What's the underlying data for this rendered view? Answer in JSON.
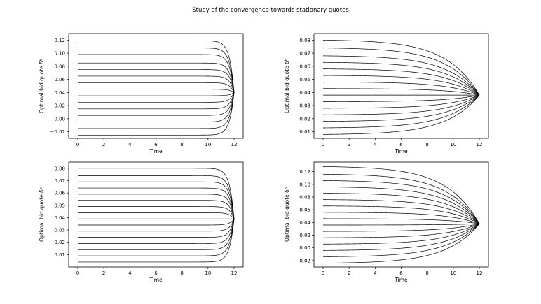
{
  "figure": {
    "title": "Study of the convergence towards stationary quotes"
  },
  "chart_data": [
    {
      "type": "line",
      "panel": "top-left",
      "xlabel": "Time",
      "ylabel": "Optimal bid quote δᵇ",
      "xlim": [
        -0.7,
        12.7
      ],
      "ylim": [
        -0.03,
        0.13
      ],
      "xticks": [
        0,
        2,
        4,
        6,
        8,
        10,
        12
      ],
      "yticks": [
        -0.02,
        0.0,
        0.02,
        0.04,
        0.06,
        0.08,
        0.1,
        0.12
      ],
      "ytick_labels": [
        "−0.02",
        "0.00",
        "0.02",
        "0.04",
        "0.06",
        "0.08",
        "0.10",
        "0.12"
      ],
      "line_color": "#000000",
      "terminal_time": 12,
      "terminal_value": 0.04,
      "convergence_rate": 3.0,
      "series_start_values": [
        -0.025,
        -0.015,
        -0.005,
        0.005,
        0.015,
        0.025,
        0.035,
        0.045,
        0.055,
        0.065,
        0.075,
        0.085,
        0.098,
        0.108,
        0.119
      ]
    },
    {
      "type": "line",
      "panel": "top-right",
      "xlabel": "Time",
      "ylabel": "Optimal bid quote δᵇ",
      "xlim": [
        -0.7,
        12.7
      ],
      "ylim": [
        0.005,
        0.085
      ],
      "xticks": [
        0,
        2,
        4,
        6,
        8,
        10,
        12
      ],
      "yticks": [
        0.01,
        0.02,
        0.03,
        0.04,
        0.05,
        0.06,
        0.07,
        0.08
      ],
      "ytick_labels": [
        "0.01",
        "0.02",
        "0.03",
        "0.04",
        "0.05",
        "0.06",
        "0.07",
        "0.08"
      ],
      "line_color": "#000000",
      "terminal_time": 12,
      "terminal_value": 0.038,
      "convergence_rate": 0.4,
      "series_start_values": [
        0.008,
        0.013,
        0.018,
        0.023,
        0.028,
        0.033,
        0.038,
        0.043,
        0.048,
        0.053,
        0.058,
        0.063,
        0.068,
        0.074,
        0.08
      ]
    },
    {
      "type": "line",
      "panel": "bottom-left",
      "xlabel": "Time",
      "ylabel": "Optimal bid quote δᵇ",
      "xlim": [
        -0.7,
        12.7
      ],
      "ylim": [
        0.0,
        0.085
      ],
      "xticks": [
        0,
        2,
        4,
        6,
        8,
        10,
        12
      ],
      "yticks": [
        0.01,
        0.02,
        0.03,
        0.04,
        0.05,
        0.06,
        0.07,
        0.08
      ],
      "ytick_labels": [
        "0.01",
        "0.02",
        "0.03",
        "0.04",
        "0.05",
        "0.06",
        "0.07",
        "0.08"
      ],
      "line_color": "#000000",
      "terminal_time": 12,
      "terminal_value": 0.039,
      "convergence_rate": 3.0,
      "series_start_values": [
        0.004,
        0.009,
        0.014,
        0.019,
        0.024,
        0.029,
        0.034,
        0.039,
        0.044,
        0.049,
        0.054,
        0.059,
        0.064,
        0.069,
        0.074,
        0.08
      ]
    },
    {
      "type": "line",
      "panel": "bottom-right",
      "xlabel": "Time",
      "ylabel": "Optimal bid quote δᵇ",
      "xlim": [
        -0.7,
        12.7
      ],
      "ylim": [
        -0.03,
        0.135
      ],
      "xticks": [
        0,
        2,
        4,
        6,
        8,
        10,
        12
      ],
      "yticks": [
        -0.02,
        0.0,
        0.02,
        0.04,
        0.06,
        0.08,
        0.1,
        0.12
      ],
      "ytick_labels": [
        "−0.02",
        "0.00",
        "0.02",
        "0.04",
        "0.06",
        "0.08",
        "0.10",
        "0.12"
      ],
      "line_color": "#000000",
      "terminal_time": 12,
      "terminal_value": 0.038,
      "convergence_rate": 0.4,
      "series_start_values": [
        -0.024,
        -0.014,
        -0.004,
        0.006,
        0.016,
        0.026,
        0.036,
        0.046,
        0.056,
        0.066,
        0.076,
        0.086,
        0.096,
        0.106,
        0.116,
        0.128
      ]
    }
  ]
}
